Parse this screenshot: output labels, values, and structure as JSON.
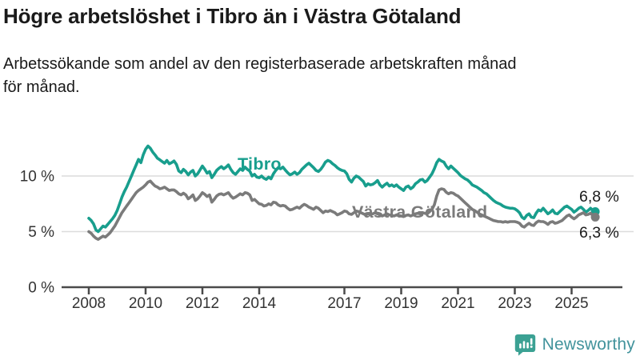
{
  "header": {
    "title": "Högre arbetslöshet i Tibro än i Västra Götaland",
    "subtitle_lines": [
      "Arbetssökande som andel av den registerbaserade arbetskraften månad",
      "för månad."
    ]
  },
  "footer": {
    "brand": "Newsworthy",
    "logo_icon": "bar-chart-speech-bubble-icon"
  },
  "colors": {
    "tibro_teal": "#189e8d",
    "vastra_gray": "#7b7b7b",
    "grid": "#dcdcdc",
    "axis": "#4a4a4a",
    "tick_text": "#333333",
    "value_text": "#1a1a1a",
    "brand_text": "#42939c",
    "brand_icon": "#3ba193"
  },
  "chart_data": {
    "type": "line",
    "unit": "%",
    "x_start_year": 2008,
    "points_per_year": 12,
    "x_ticks": [
      2008,
      2010,
      2012,
      2014,
      2017,
      2019,
      2021,
      2023,
      2025
    ],
    "y_ticks": [
      {
        "value": 0,
        "label": "0 %"
      },
      {
        "value": 5,
        "label": "5 %"
      },
      {
        "value": 10,
        "label": "10 %"
      }
    ],
    "ylim": [
      0,
      14
    ],
    "grid": true,
    "legend_position": "inline-labels",
    "series": [
      {
        "name": "Tibro",
        "color_key": "tibro_teal",
        "end_label": "6,8 %",
        "end_value": 6.8,
        "values": [
          6.2,
          6.0,
          5.7,
          5.15,
          5.0,
          5.25,
          5.5,
          5.4,
          5.65,
          5.9,
          6.15,
          6.45,
          6.9,
          7.5,
          8.1,
          8.6,
          9.0,
          9.5,
          10.0,
          10.5,
          11.0,
          11.5,
          11.2,
          11.9,
          12.4,
          12.7,
          12.5,
          12.15,
          11.9,
          11.6,
          11.45,
          11.3,
          11.15,
          11.4,
          11.1,
          11.2,
          11.35,
          11.05,
          10.45,
          10.3,
          10.6,
          10.4,
          10.1,
          10.35,
          10.5,
          10.0,
          10.2,
          10.55,
          10.9,
          10.6,
          10.25,
          10.4,
          9.85,
          10.15,
          10.5,
          10.7,
          10.85,
          10.65,
          10.8,
          11.0,
          10.6,
          10.3,
          10.15,
          10.4,
          10.65,
          10.5,
          10.8,
          10.6,
          10.45,
          10.0,
          10.15,
          9.9,
          9.85,
          10.0,
          9.8,
          9.7,
          9.9,
          9.75,
          10.2,
          10.5,
          10.75,
          10.65,
          10.8,
          10.55,
          10.3,
          10.1,
          10.2,
          10.35,
          10.15,
          10.3,
          10.6,
          10.8,
          11.0,
          11.15,
          10.95,
          10.75,
          10.5,
          10.4,
          10.6,
          10.9,
          11.25,
          11.4,
          11.3,
          11.1,
          10.95,
          10.75,
          10.6,
          10.5,
          10.45,
          10.2,
          9.7,
          9.45,
          9.8,
          10.0,
          9.9,
          9.7,
          9.5,
          9.1,
          9.3,
          9.2,
          9.25,
          9.4,
          9.6,
          9.2,
          9.0,
          9.2,
          9.35,
          9.1,
          9.2,
          9.05,
          9.2,
          9.0,
          8.85,
          8.7,
          9.0,
          9.1,
          8.85,
          9.0,
          9.3,
          9.45,
          9.65,
          9.7,
          9.45,
          9.6,
          9.9,
          10.2,
          10.65,
          11.2,
          11.5,
          11.35,
          11.25,
          10.9,
          10.65,
          10.9,
          10.7,
          10.5,
          10.3,
          10.05,
          9.9,
          9.75,
          9.65,
          9.45,
          9.2,
          9.1,
          9.0,
          8.85,
          8.7,
          8.5,
          8.4,
          8.2,
          8.0,
          7.8,
          7.65,
          7.55,
          7.45,
          7.3,
          7.2,
          7.15,
          7.1,
          7.1,
          7.05,
          6.9,
          6.7,
          6.3,
          6.15,
          6.45,
          6.6,
          6.3,
          6.25,
          6.65,
          6.95,
          6.85,
          7.1,
          6.85,
          6.6,
          6.75,
          6.95,
          6.65,
          6.6,
          6.8,
          7.0,
          7.2,
          7.3,
          7.15,
          7.0,
          6.75,
          6.9,
          7.1,
          7.2,
          7.0,
          6.75,
          6.9,
          7.1,
          6.9,
          6.8
        ]
      },
      {
        "name": "Västra Götaland",
        "color_key": "vastra_gray",
        "end_label": "6,3 %",
        "end_value": 6.3,
        "values": [
          5.0,
          4.85,
          4.6,
          4.4,
          4.3,
          4.45,
          4.6,
          4.5,
          4.7,
          4.9,
          5.2,
          5.5,
          5.9,
          6.3,
          6.7,
          7.0,
          7.3,
          7.6,
          7.9,
          8.2,
          8.5,
          8.7,
          8.85,
          9.0,
          9.2,
          9.45,
          9.55,
          9.3,
          9.1,
          9.0,
          8.85,
          8.9,
          9.0,
          8.85,
          8.7,
          8.75,
          8.75,
          8.6,
          8.4,
          8.3,
          8.45,
          8.3,
          7.95,
          8.1,
          8.3,
          7.8,
          7.95,
          8.2,
          8.5,
          8.35,
          8.15,
          8.3,
          7.65,
          7.9,
          8.2,
          8.35,
          8.4,
          8.3,
          8.4,
          8.5,
          8.2,
          8.0,
          8.1,
          8.25,
          8.4,
          8.3,
          8.5,
          8.45,
          8.3,
          7.8,
          7.9,
          7.7,
          7.5,
          7.45,
          7.3,
          7.35,
          7.5,
          7.4,
          7.65,
          7.6,
          7.4,
          7.3,
          7.35,
          7.3,
          7.1,
          6.95,
          7.0,
          7.1,
          7.2,
          7.1,
          7.3,
          7.45,
          7.35,
          7.2,
          7.1,
          7.0,
          7.2,
          7.1,
          6.9,
          6.7,
          6.85,
          6.8,
          6.9,
          6.8,
          6.7,
          6.5,
          6.6,
          6.7,
          6.85,
          6.8,
          6.6,
          6.55,
          6.7,
          6.85,
          6.8,
          6.7,
          6.6,
          6.5,
          6.6,
          6.55,
          6.6,
          6.7,
          6.6,
          6.5,
          6.4,
          6.5,
          6.6,
          6.5,
          6.45,
          6.4,
          6.5,
          6.45,
          6.4,
          6.35,
          6.45,
          6.5,
          6.4,
          6.5,
          6.6,
          6.65,
          6.6,
          6.7,
          6.65,
          6.6,
          6.8,
          7.0,
          7.4,
          8.2,
          8.75,
          8.85,
          8.8,
          8.55,
          8.4,
          8.5,
          8.45,
          8.3,
          8.2,
          8.0,
          7.8,
          7.6,
          7.4,
          7.2,
          7.0,
          6.9,
          6.75,
          6.6,
          6.5,
          6.4,
          6.3,
          6.2,
          6.1,
          6.0,
          5.95,
          5.9,
          5.9,
          5.85,
          5.9,
          5.85,
          5.9,
          5.9,
          5.9,
          5.85,
          5.75,
          5.5,
          5.4,
          5.6,
          5.75,
          5.6,
          5.55,
          5.8,
          5.95,
          5.9,
          5.9,
          5.8,
          5.65,
          5.85,
          5.9,
          5.75,
          5.8,
          5.9,
          6.0,
          6.2,
          6.4,
          6.5,
          6.3,
          6.15,
          6.3,
          6.5,
          6.6,
          6.7,
          6.5,
          6.55,
          6.65,
          6.45,
          6.3
        ]
      }
    ]
  }
}
